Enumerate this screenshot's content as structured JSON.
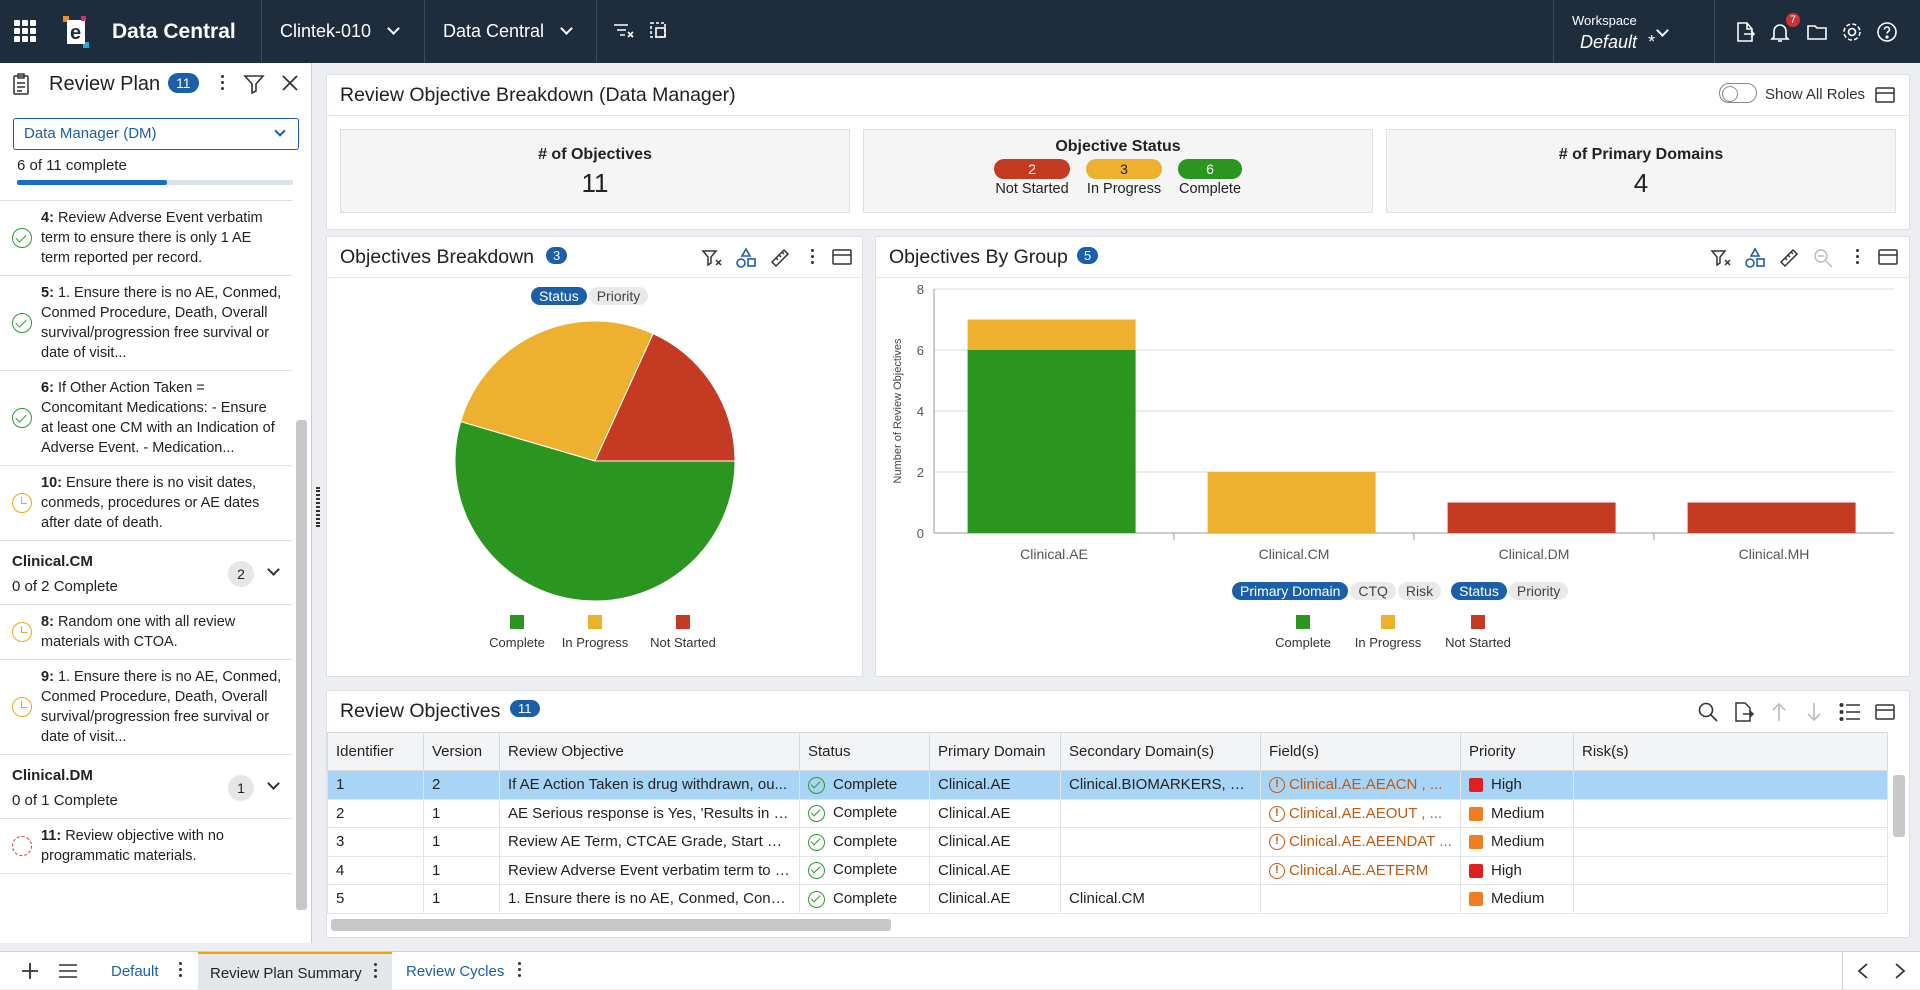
{
  "topbar": {
    "app_name": "Data Central",
    "study": "Clintek-010",
    "module": "Data Central",
    "workspace_label": "Workspace",
    "workspace_value": "Default",
    "workspace_marker": "*",
    "notification_count": "7"
  },
  "review_plan": {
    "title": "Review Plan",
    "count": "11",
    "role_select": "Data Manager (DM)",
    "progress_text": "6 of 11 complete",
    "progress_fraction": 0.545,
    "items_a": [
      {
        "num": "4:",
        "text": "Review Adverse Event verbatim term to ensure there is only 1 AE term reported per record.",
        "status": "complete"
      },
      {
        "num": "5:",
        "text": "1. Ensure there is no AE, Conmed, Conmed Procedure, Death, Overall survival/progression free survival or date of visit...",
        "status": "complete"
      },
      {
        "num": "6:",
        "text": "If Other Action Taken = Concomitant Medications: - Ensure at least one CM with an Indication of Adverse Event. - Medication...",
        "status": "complete"
      },
      {
        "num": "10:",
        "text": "Ensure there is no visit dates, conmeds, procedures or AE dates after date of death.",
        "status": "in-progress"
      }
    ],
    "group_cm": {
      "title": "Clinical.CM",
      "sub": "0 of 2 Complete",
      "count": "2"
    },
    "items_b": [
      {
        "num": "8:",
        "text": "Random one with all review materials with CTOA.",
        "status": "in-progress"
      },
      {
        "num": "9:",
        "text": "1. Ensure there is no AE, Conmed, Conmed Procedure, Death, Overall survival/progression free survival or date of visit...",
        "status": "in-progress"
      }
    ],
    "group_dm": {
      "title": "Clinical.DM",
      "sub": "0 of 1 Complete",
      "count": "1"
    },
    "items_c": [
      {
        "num": "11:",
        "text": "Review objective with no programmatic materials.",
        "status": "not-started"
      }
    ]
  },
  "breakdown": {
    "title": "Review Objective Breakdown (Data Manager)",
    "show_all_roles": "Show All Roles",
    "kpi_objectives_label": "# of Objectives",
    "kpi_objectives_value": "11",
    "status_label": "Objective Status",
    "not_started_count": "2",
    "not_started_label": "Not Started",
    "in_progress_count": "3",
    "in_progress_label": "In Progress",
    "complete_count": "6",
    "complete_label": "Complete",
    "kpi_domains_label": "# of Primary Domains",
    "kpi_domains_value": "4"
  },
  "pie_card": {
    "title": "Objectives Breakdown",
    "count": "3",
    "chip_status": "Status",
    "chip_priority": "Priority",
    "legend": [
      "Complete",
      "In Progress",
      "Not Started"
    ]
  },
  "bar_card": {
    "title": "Objectives By Group",
    "count": "5",
    "chips": [
      "Primary Domain",
      "CTQ",
      "Risk",
      "Status",
      "Priority"
    ],
    "legend": [
      "Complete",
      "In Progress",
      "Not Started"
    ]
  },
  "colors": {
    "complete": "#2a961f",
    "in_progress": "#eeb12f",
    "not_started": "#c53a23",
    "accent": "#1a5fa8",
    "high": "#e02020",
    "medium": "#f07d20"
  },
  "chart_data": [
    {
      "type": "pie",
      "labels": [
        "Complete",
        "In Progress",
        "Not Started"
      ],
      "values": [
        6,
        3,
        2
      ]
    },
    {
      "type": "bar",
      "categories": [
        "Clinical.AE",
        "Clinical.CM",
        "Clinical.DM",
        "Clinical.MH"
      ],
      "ylabel": "Number of Review Objectives",
      "ylim": [
        0,
        8
      ],
      "yticks": [
        "0",
        "2",
        "4",
        "6",
        "8"
      ],
      "series": [
        {
          "name": "Complete",
          "values": [
            6,
            0,
            0,
            0
          ]
        },
        {
          "name": "In Progress",
          "values": [
            1,
            2,
            0,
            0
          ]
        },
        {
          "name": "Not Started",
          "values": [
            0,
            0,
            1,
            1
          ]
        }
      ]
    }
  ],
  "table": {
    "title": "Review Objectives",
    "count": "11",
    "columns": [
      "Identifier",
      "Version",
      "Review Objective",
      "Status",
      "Primary Domain",
      "Secondary Domain(s)",
      "Field(s)",
      "Priority",
      "Risk(s)"
    ],
    "rows": [
      {
        "id": "1",
        "ver": "2",
        "obj": "If AE Action Taken is drug withdrawn, ou...",
        "status": "Complete",
        "pd": "Clinical.AE",
        "sd": "Clinical.BIOMARKERS, Cli...",
        "field": "Clinical.AE.AEACN , ...",
        "priority": "High",
        "risk": ""
      },
      {
        "id": "2",
        "ver": "1",
        "obj": "AE Serious response is Yes, 'Results in D...",
        "status": "Complete",
        "pd": "Clinical.AE",
        "sd": "",
        "field": "Clinical.AE.AEOUT , ...",
        "priority": "Medium",
        "risk": ""
      },
      {
        "id": "3",
        "ver": "1",
        "obj": "Review AE Term, CTCAE Grade, Start Dat...",
        "status": "Complete",
        "pd": "Clinical.AE",
        "sd": "",
        "field": "Clinical.AE.AEENDAT ...",
        "priority": "Medium",
        "risk": ""
      },
      {
        "id": "4",
        "ver": "1",
        "obj": "Review Adverse Event verbatim term to e...",
        "status": "Complete",
        "pd": "Clinical.AE",
        "sd": "",
        "field": "Clinical.AE.AETERM",
        "priority": "High",
        "risk": ""
      },
      {
        "id": "5",
        "ver": "1",
        "obj": "1. Ensure there is no AE, Conmed, Conm...",
        "status": "Complete",
        "pd": "Clinical.AE",
        "sd": "Clinical.CM",
        "field": "",
        "priority": "Medium",
        "risk": ""
      }
    ]
  },
  "bottom_tabs": [
    "Default",
    "Review Plan Summary",
    "Review Cycles"
  ]
}
